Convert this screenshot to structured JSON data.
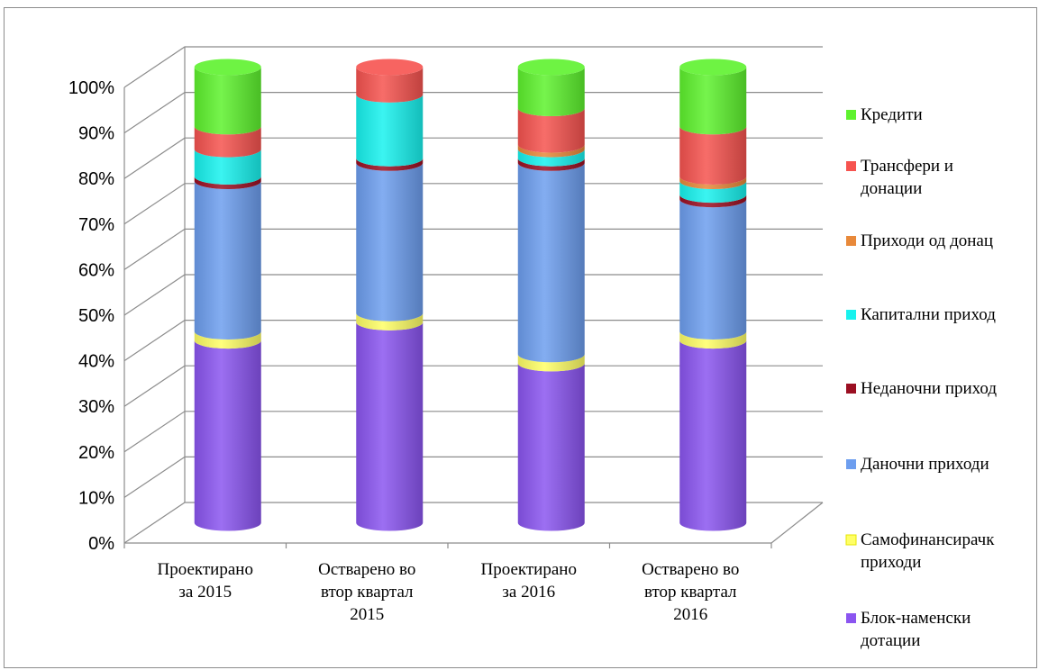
{
  "chart_data": {
    "type": "bar",
    "stacked": true,
    "three_d": true,
    "categories": [
      [
        "Проектирано",
        "за 2015"
      ],
      [
        "Остварено во",
        "втор квартал",
        "2015"
      ],
      [
        "Проектирано",
        "за 2016"
      ],
      [
        "Остварено во",
        "втор квартал",
        "2016"
      ]
    ],
    "y_ticks": [
      "0%",
      "10%",
      "20%",
      "30%",
      "40%",
      "50%",
      "60%",
      "70%",
      "80%",
      "90%",
      "100%"
    ],
    "ylim": [
      0,
      100
    ],
    "grid": true,
    "legend_position": "right",
    "series": [
      {
        "name": "Блок-наменски дотации",
        "legend": [
          "Блок-наменски",
          "дотации"
        ],
        "color": "#8b55f0",
        "values": [
          40,
          44,
          35,
          40
        ]
      },
      {
        "name": "Самофинансирачки приходи",
        "legend": [
          "Самофинансирачк",
          "приходи"
        ],
        "color": "#ffff66",
        "values": [
          2,
          2,
          2,
          2
        ]
      },
      {
        "name": "Даночни приходи",
        "legend": [
          "Даночни приходи"
        ],
        "color": "#6d9eef",
        "values": [
          33,
          33,
          42,
          29
        ]
      },
      {
        "name": "Неданочни приходи",
        "legend": [
          "Неданочни приход"
        ],
        "color": "#9b0f22",
        "values": [
          1,
          1,
          1,
          1
        ]
      },
      {
        "name": "Капитални приходи",
        "legend": [
          "Капитални приход"
        ],
        "color": "#18f2ee",
        "values": [
          6,
          14,
          2,
          3
        ]
      },
      {
        "name": "Приходи од донации",
        "legend": [
          "Приходи од донац"
        ],
        "color": "#e8893a",
        "values": [
          0,
          0,
          1,
          1
        ]
      },
      {
        "name": "Трансфери и донации",
        "legend": [
          "Трансфери и",
          "донации"
        ],
        "color": "#f6534f",
        "values": [
          5,
          6,
          8,
          11
        ]
      },
      {
        "name": "Кредити",
        "legend": [
          "Кредити"
        ],
        "color": "#5ef22e",
        "values": [
          13,
          0,
          9,
          13
        ]
      }
    ]
  }
}
